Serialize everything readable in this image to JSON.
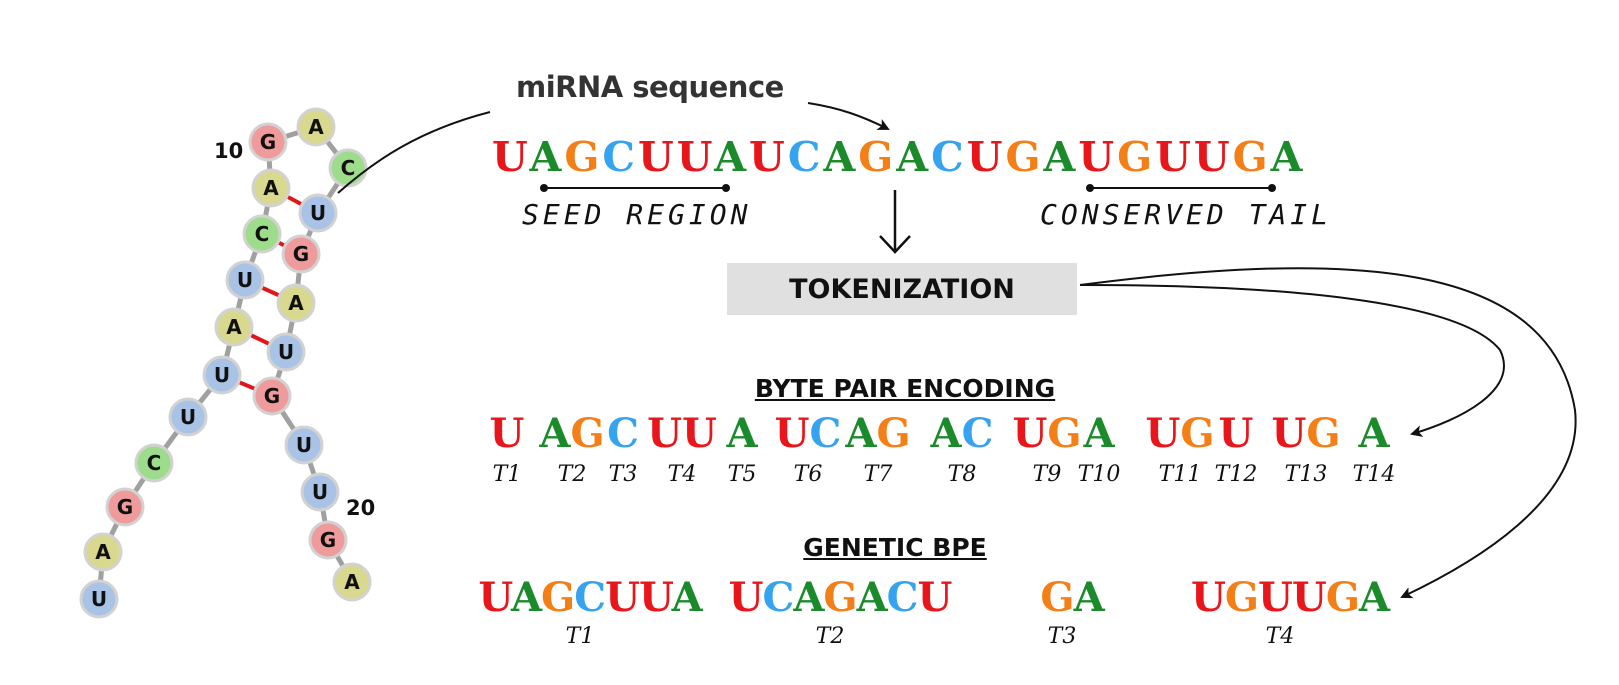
{
  "colors": {
    "U": "#e8161b",
    "A": "#1a8a2a",
    "G": "#f57f17",
    "C": "#36a3f0"
  },
  "node_colors": {
    "G": {
      "fill": "#f09b9b",
      "stroke": "#d2d2d2"
    },
    "A": {
      "fill": "#d8d88e",
      "stroke": "#d2d2d2"
    },
    "C": {
      "fill": "#9cdc8a",
      "stroke": "#d2d2d2"
    },
    "U": {
      "fill": "#a9c3e6",
      "stroke": "#d2d2d2"
    }
  },
  "structure": {
    "nodes": [
      "U",
      "A",
      "G",
      "C",
      "U",
      "U",
      "A",
      "U",
      "C",
      "A",
      "G",
      "A",
      "C",
      "U",
      "G",
      "A",
      "U",
      "G",
      "U",
      "U",
      "G",
      "A"
    ],
    "number_labels": [
      "10",
      "20"
    ]
  },
  "caption": "miRNA sequence",
  "sequence": "UAGCUUAUCAGACUGAUGUUGA",
  "seed_label": "SEED REGION",
  "tail_label": "CONSERVED TAIL",
  "tokenization_label": "TOKENIZATION",
  "bpe": {
    "heading": "BYTE PAIR ENCODING",
    "tokens": [
      {
        "text": "U",
        "label": "T1"
      },
      {
        "text": "AG",
        "label": "T2"
      },
      {
        "text": "C",
        "label": "T3"
      },
      {
        "text": "UU",
        "label": "T4"
      },
      {
        "text": "A",
        "label": "T5"
      },
      {
        "text": "UC",
        "label": "T6"
      },
      {
        "text": "AG",
        "label": "T7"
      },
      {
        "text": "AC",
        "label": "T8"
      },
      {
        "text": "UG",
        "label": "T9"
      },
      {
        "text": "A",
        "label": "T10"
      },
      {
        "text": "UG",
        "label": "T11"
      },
      {
        "text": "U",
        "label": "T12"
      },
      {
        "text": "UG",
        "label": "T13"
      },
      {
        "text": "A",
        "label": "T14"
      }
    ]
  },
  "genetic_bpe": {
    "heading": "GENETIC BPE",
    "tokens": [
      {
        "text": "UAGCUUA",
        "label": "T1"
      },
      {
        "text": "UCAGACU",
        "label": "T2"
      },
      {
        "text": "GA",
        "label": "T3"
      },
      {
        "text": "UGUUGA",
        "label": "T4"
      }
    ]
  }
}
